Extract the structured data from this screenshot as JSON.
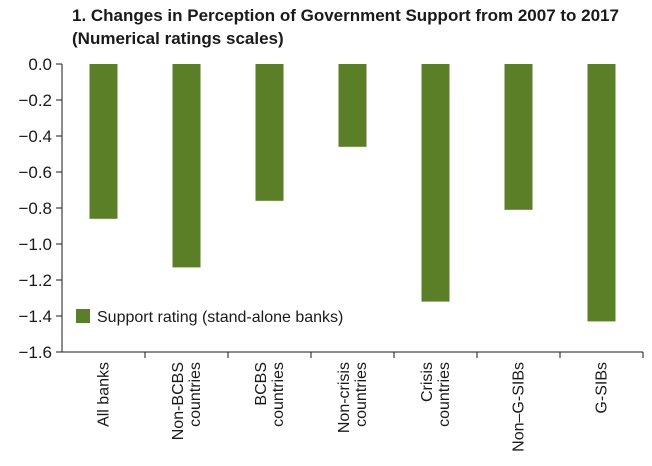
{
  "chart_data": {
    "type": "bar",
    "title_line1": "1. Changes in Perception of Government Support from 2007 to 2017",
    "title_line2": "(Numerical ratings scales)",
    "categories": [
      [
        "All banks"
      ],
      [
        "Non-BCBS",
        "countries"
      ],
      [
        "BCBS",
        "countries"
      ],
      [
        "Non-crisis",
        "countries"
      ],
      [
        "Crisis",
        "countries"
      ],
      [
        "Non–G-SIBs"
      ],
      [
        "G-SIBs"
      ]
    ],
    "series": [
      {
        "name": "Support rating (stand-alone banks)",
        "color": "#5b7f26",
        "values": [
          -0.86,
          -1.13,
          -0.76,
          -0.46,
          -1.32,
          -0.81,
          -1.43
        ]
      }
    ],
    "ylim": [
      -1.6,
      0.0
    ],
    "yticks": [
      "0.0",
      "−0.2",
      "−0.4",
      "−0.6",
      "−0.8",
      "−1.0",
      "−1.2",
      "−1.4",
      "−1.6"
    ],
    "ytick_values": [
      0.0,
      -0.2,
      -0.4,
      -0.6,
      -0.8,
      -1.0,
      -1.2,
      -1.4,
      -1.6
    ],
    "legend_position": "bottom-left",
    "grid": false
  }
}
